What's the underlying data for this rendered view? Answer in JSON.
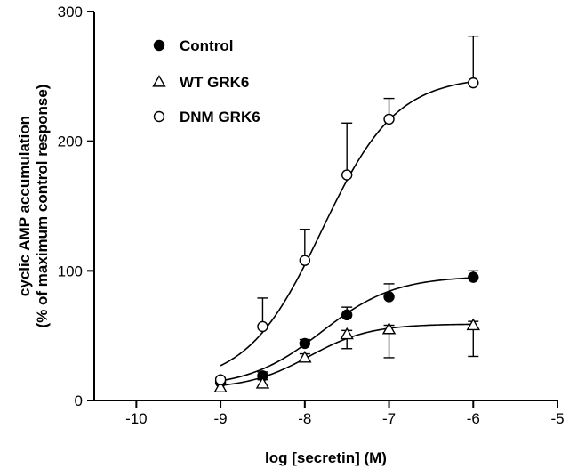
{
  "chart_data": {
    "type": "scatter",
    "xlabel": "log [secretin] (M)",
    "ylabel_line1": "cyclic AMP accumulation",
    "ylabel_line2": "(% of maximum control response)",
    "xlim": [
      -10.5,
      -5
    ],
    "ylim": [
      0,
      300
    ],
    "x_ticks": [
      -10,
      -9,
      -8,
      -7,
      -6,
      -5
    ],
    "x_tick_labels": [
      "-10",
      "-9",
      "-8",
      "-7",
      "-6",
      "-5"
    ],
    "y_ticks": [
      0,
      100,
      200,
      300
    ],
    "y_tick_labels": [
      "0",
      "100",
      "200",
      "300"
    ],
    "legend_position": "top-left",
    "series": [
      {
        "name": "Control",
        "marker": "filled-circle",
        "x": [
          -9,
          -8.5,
          -8,
          -7.5,
          -7,
          -6
        ],
        "y": [
          14,
          19,
          44,
          66,
          80,
          95
        ],
        "err_up": [
          3,
          3,
          3,
          6,
          10,
          5
        ],
        "err_down": [
          0,
          0,
          0,
          0,
          0,
          0
        ],
        "fit": {
          "bottom": 10,
          "top": 96,
          "logEC50": -7.8,
          "hill": 1.0
        }
      },
      {
        "name": "WT GRK6",
        "marker": "open-triangle",
        "x": [
          -9,
          -8.5,
          -8,
          -7.5,
          -7,
          -6
        ],
        "y": [
          10,
          13,
          33,
          51,
          55,
          58
        ],
        "err_up": [
          3,
          3,
          3,
          3,
          3,
          3
        ],
        "err_down": [
          0,
          0,
          0,
          11,
          22,
          24
        ],
        "fit": {
          "bottom": 9,
          "top": 59,
          "logEC50": -7.95,
          "hill": 1.2
        }
      },
      {
        "name": "DNM GRK6",
        "marker": "open-circle",
        "x": [
          -9,
          -8.5,
          -8,
          -7.5,
          -7,
          -6
        ],
        "y": [
          16,
          57,
          108,
          174,
          217,
          245
        ],
        "err_up": [
          0,
          22,
          24,
          40,
          16,
          36
        ],
        "err_down": [
          0,
          0,
          0,
          0,
          0,
          0
        ],
        "fit": {
          "bottom": 12,
          "top": 250,
          "logEC50": -7.8,
          "hill": 0.98
        }
      }
    ]
  }
}
